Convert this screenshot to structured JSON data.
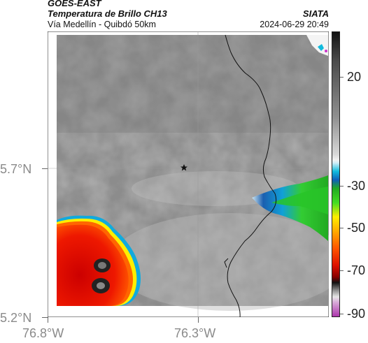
{
  "header": {
    "satellite": "GOES-EAST",
    "product": "Temperatura de Brillo CH13",
    "source": "SIATA",
    "region": "Vía Medellín - Quibdó 50km",
    "datetime": "2024-06-29 20:49"
  },
  "axes": {
    "lat_labels": [
      "5.7°N",
      "5.2°N"
    ],
    "lon_labels": [
      "76.8°W",
      "76.3°W"
    ]
  },
  "colorbar": {
    "ticks": [
      "20",
      "-30",
      "-50",
      "-70",
      "-90"
    ]
  },
  "colors": {
    "cold_core": "#222222",
    "red": "#dd1100",
    "orange": "#ff6600",
    "yellow": "#ffee00",
    "green": "#22bb22",
    "cyan": "#11aadd",
    "magenta": "#bb44bb"
  },
  "marker": {
    "icon": "star-icon"
  }
}
